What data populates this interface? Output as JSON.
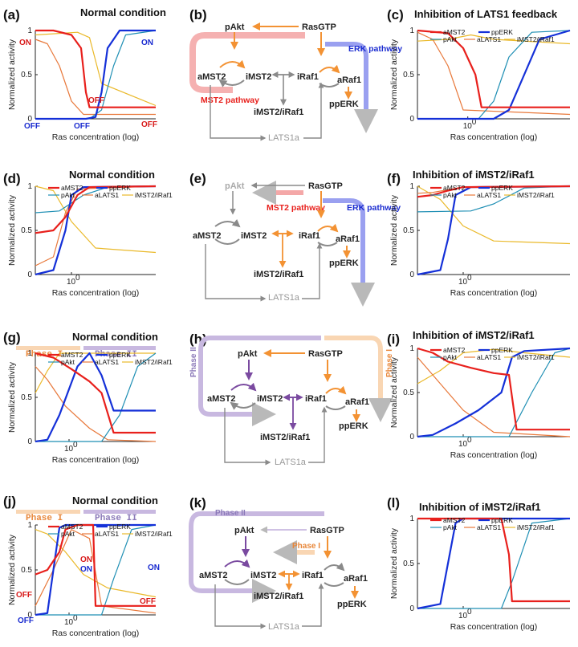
{
  "colors": {
    "aMST2": "#e8201c",
    "ppERK": "#1430d8",
    "pAkt": "#1f8fb4",
    "aLATS1": "#e8783a",
    "iMST2_iRaf1": "#eab92a",
    "orange_arrow": "#f39233",
    "gray_arrow": "#8a8a8a",
    "purple_arrow": "#7a4aa0",
    "mst2_band": "#f4a8a8",
    "erk_band": "#9aa0f0",
    "phase1_band": "#f9d6b3",
    "phase2_band": "#c8b8e0",
    "phase1_text": "#e8873a",
    "phase2_text": "#8a78b8",
    "on_red": "#d81b1b",
    "on_blue": "#1a2bd0",
    "latsa_text": "#999999"
  },
  "common": {
    "xlabel": "Ras concentration (log)",
    "ylabel": "Normalized activity",
    "xtick": "10",
    "xtick_exp": "0"
  },
  "panels": [
    {
      "label": "(a)",
      "title": "Normal condition"
    },
    {
      "label": "(b)"
    },
    {
      "label": "(c)",
      "title": "Inhibition of LATS1 feedback"
    },
    {
      "label": "(d)",
      "title": "Normal condition"
    },
    {
      "label": "(e)"
    },
    {
      "label": "(f)",
      "title": "Inhibition of iMST2/iRaf1"
    },
    {
      "label": "(g)",
      "title": "Normal condition"
    },
    {
      "label": "(h)"
    },
    {
      "label": "(i)",
      "title": "Inhibition of iMST2/iRaf1"
    },
    {
      "label": "(j)",
      "title": "Normal condition"
    },
    {
      "label": "(k)"
    },
    {
      "label": "(l)",
      "title": "Inhibition of iMST2/iRaf1"
    }
  ],
  "legend": {
    "aMST2": "aMST2",
    "ppERK": "ppERK",
    "pAkt": "pAkt",
    "aLATS1": "aLATS1",
    "iMST2_iRaf1": "iMST2/iRaf1"
  },
  "nodes": {
    "pAkt": "pAkt",
    "RasGTP": "RasGTP",
    "aMST2": "aMST2",
    "iMST2": "iMST2",
    "iRaf1": "iRaf1",
    "aRaf1": "aRaf1",
    "ppERK": "ppERK",
    "complex": "iMST2/iRaf1",
    "LATS1a": "LATS1a"
  },
  "pathways": {
    "mst2": "MST2 pathway",
    "erk": "ERK pathway",
    "phase1": "Phase I",
    "phase2": "Phase II"
  },
  "phase_bar": {
    "phase1": "Phase I",
    "phase2": "Phase II"
  },
  "annotations": {
    "on": "ON",
    "off": "OFF"
  },
  "chart_data": [
    {
      "type": "line",
      "panel": "a",
      "title": "Normal condition",
      "xlabel": "Ras concentration (log)",
      "ylabel": "Normalized activity",
      "xscale": "log",
      "ylim": [
        0,
        1
      ],
      "series": [
        {
          "name": "aMST2",
          "x": [
            0,
            0.15,
            0.3,
            0.38,
            0.42,
            0.45,
            1
          ],
          "y": [
            1,
            1,
            0.95,
            0.8,
            0.3,
            0.13,
            0.13
          ]
        },
        {
          "name": "ppERK",
          "x": [
            0,
            0.42,
            0.5,
            0.55,
            0.6,
            0.7,
            1
          ],
          "y": [
            0,
            0,
            0.02,
            0.3,
            0.8,
            1,
            1
          ]
        },
        {
          "name": "pAkt",
          "x": [
            0,
            0.45,
            0.55,
            0.65,
            0.75,
            1
          ],
          "y": [
            0,
            0,
            0.1,
            0.6,
            0.95,
            1
          ]
        },
        {
          "name": "aLATS1",
          "x": [
            0,
            0.1,
            0.2,
            0.3,
            0.4,
            1
          ],
          "y": [
            0.9,
            0.85,
            0.6,
            0.2,
            0.05,
            0.05
          ]
        },
        {
          "name": "iMST2/iRaf1",
          "x": [
            0,
            0.35,
            0.45,
            0.55,
            1
          ],
          "y": [
            0.95,
            0.98,
            0.92,
            0.4,
            0.15
          ]
        }
      ]
    },
    {
      "type": "line",
      "panel": "c",
      "title": "Inhibition of LATS1 feedback",
      "xlabel": "Ras concentration (log)",
      "ylabel": "Normalized activity",
      "xscale": "log",
      "ylim": [
        0,
        1
      ],
      "series": [
        {
          "name": "aMST2",
          "x": [
            0,
            0.2,
            0.3,
            0.38,
            0.42,
            1
          ],
          "y": [
            1,
            0.97,
            0.8,
            0.5,
            0.13,
            0.13
          ]
        },
        {
          "name": "ppERK",
          "x": [
            0,
            0.5,
            0.6,
            0.7,
            0.8,
            1
          ],
          "y": [
            0,
            0,
            0.1,
            0.5,
            0.9,
            1
          ]
        },
        {
          "name": "pAkt",
          "x": [
            0,
            0.4,
            0.5,
            0.6,
            0.75,
            1
          ],
          "y": [
            0,
            0,
            0.2,
            0.7,
            0.98,
            1
          ]
        },
        {
          "name": "aLATS1",
          "x": [
            0,
            0.1,
            0.2,
            0.3,
            1
          ],
          "y": [
            0.98,
            0.9,
            0.6,
            0.1,
            0.05
          ]
        },
        {
          "name": "iMST2/iRaf1",
          "x": [
            0,
            0.2,
            0.35,
            0.5,
            1
          ],
          "y": [
            0.88,
            0.9,
            0.95,
            0.9,
            0.85
          ]
        }
      ]
    },
    {
      "type": "line",
      "panel": "d",
      "title": "Normal condition",
      "xlabel": "Ras concentration (log)",
      "ylabel": "Normalized activity",
      "xscale": "log",
      "ylim": [
        0,
        1
      ],
      "series": [
        {
          "name": "aMST2",
          "x": [
            0,
            0.15,
            0.25,
            0.35,
            0.45,
            1
          ],
          "y": [
            0.47,
            0.5,
            0.65,
            0.9,
            0.99,
            1
          ]
        },
        {
          "name": "ppERK",
          "x": [
            0,
            0.15,
            0.25,
            0.3,
            0.4,
            1
          ],
          "y": [
            0,
            0.05,
            0.5,
            0.9,
            0.99,
            1
          ]
        },
        {
          "name": "pAkt",
          "x": [
            0,
            0.2,
            0.4,
            0.6,
            1
          ],
          "y": [
            0.7,
            0.72,
            0.9,
            0.99,
            1
          ]
        },
        {
          "name": "aLATS1",
          "x": [
            0,
            0.15,
            0.25,
            0.35,
            1
          ],
          "y": [
            0.1,
            0.2,
            0.7,
            0.97,
            1
          ]
        },
        {
          "name": "iMST2/iRaf1",
          "x": [
            0,
            0.15,
            0.3,
            0.5,
            1
          ],
          "y": [
            1,
            0.95,
            0.6,
            0.3,
            0.25
          ]
        }
      ]
    },
    {
      "type": "line",
      "panel": "f",
      "title": "Inhibition of iMST2/iRaf1",
      "xlabel": "Ras concentration (log)",
      "ylabel": "Normalized activity",
      "xscale": "log",
      "ylim": [
        0,
        1
      ],
      "series": [
        {
          "name": "aMST2",
          "x": [
            0,
            0.1,
            0.2,
            0.3,
            1
          ],
          "y": [
            0.88,
            0.9,
            0.95,
            0.99,
            1
          ]
        },
        {
          "name": "ppERK",
          "x": [
            0,
            0.15,
            0.2,
            0.25,
            0.35,
            1
          ],
          "y": [
            0,
            0.05,
            0.4,
            0.9,
            0.99,
            1
          ]
        },
        {
          "name": "pAkt",
          "x": [
            0,
            0.35,
            0.5,
            0.7,
            1
          ],
          "y": [
            0.71,
            0.72,
            0.8,
            0.98,
            1
          ]
        },
        {
          "name": "aLATS1",
          "x": [
            0,
            0.1,
            0.2,
            0.3,
            1
          ],
          "y": [
            0.92,
            0.93,
            0.96,
            0.99,
            1
          ]
        },
        {
          "name": "iMST2/iRaf1",
          "x": [
            0,
            0.15,
            0.3,
            0.5,
            1
          ],
          "y": [
            1,
            0.85,
            0.55,
            0.38,
            0.35
          ]
        }
      ]
    },
    {
      "type": "line",
      "panel": "g",
      "title": "Normal condition",
      "xlabel": "Ras concentration (log)",
      "ylabel": "Normalized activity",
      "xscale": "log",
      "ylim": [
        0,
        1
      ],
      "series": [
        {
          "name": "aMST2",
          "x": [
            0,
            0.15,
            0.3,
            0.45,
            0.55,
            0.65,
            1
          ],
          "y": [
            1,
            0.95,
            0.82,
            0.68,
            0.55,
            0.1,
            0.1
          ]
        },
        {
          "name": "ppERK",
          "x": [
            0,
            0.1,
            0.2,
            0.35,
            0.45,
            0.55,
            0.65,
            1
          ],
          "y": [
            0,
            0.02,
            0.3,
            0.85,
            1,
            0.75,
            0.35,
            0.35
          ]
        },
        {
          "name": "pAkt",
          "x": [
            0,
            0.55,
            0.7,
            0.85,
            1
          ],
          "y": [
            0,
            0,
            0.3,
            0.85,
            1
          ]
        },
        {
          "name": "aLATS1",
          "x": [
            0,
            0.1,
            0.25,
            0.45,
            0.6,
            1
          ],
          "y": [
            0.85,
            0.7,
            0.4,
            0.15,
            0.02,
            0
          ]
        },
        {
          "name": "iMST2/iRaf1",
          "x": [
            0,
            0.1,
            0.2,
            0.3,
            0.5,
            1
          ],
          "y": [
            0.55,
            0.8,
            1,
            1,
            1,
            1
          ]
        }
      ]
    },
    {
      "type": "line",
      "panel": "i",
      "title": "Inhibition of iMST2/iRaf1",
      "xlabel": "Ras concentration (log)",
      "ylabel": "Normalized activity",
      "xscale": "log",
      "ylim": [
        0,
        1
      ],
      "series": [
        {
          "name": "aMST2",
          "x": [
            0,
            0.1,
            0.2,
            0.35,
            0.5,
            0.6,
            0.65,
            1
          ],
          "y": [
            1,
            0.95,
            0.85,
            0.78,
            0.72,
            0.7,
            0.08,
            0.08
          ]
        },
        {
          "name": "ppERK",
          "x": [
            0,
            0.1,
            0.25,
            0.4,
            0.55,
            0.62,
            0.7,
            1
          ],
          "y": [
            0,
            0.02,
            0.15,
            0.3,
            0.5,
            0.9,
            0.97,
            1
          ]
        },
        {
          "name": "pAkt",
          "x": [
            0,
            0.6,
            0.75,
            0.9,
            1
          ],
          "y": [
            0,
            0,
            0.5,
            0.95,
            1
          ]
        },
        {
          "name": "aLATS1",
          "x": [
            0,
            0.1,
            0.3,
            0.5,
            1
          ],
          "y": [
            0.9,
            0.7,
            0.3,
            0.05,
            0
          ]
        },
        {
          "name": "iMST2/iRaf1",
          "x": [
            0,
            0.15,
            0.3,
            0.5,
            0.7,
            1
          ],
          "y": [
            0.6,
            0.75,
            0.95,
            0.99,
            0.95,
            0.9
          ]
        }
      ]
    },
    {
      "type": "line",
      "panel": "j",
      "title": "Normal condition",
      "xlabel": "Ras concentration (log)",
      "ylabel": "Normalized activity",
      "xscale": "log",
      "ylim": [
        0,
        1
      ],
      "series": [
        {
          "name": "aMST2",
          "x": [
            0,
            0.1,
            0.2,
            0.25,
            0.35,
            0.48,
            0.5,
            1
          ],
          "y": [
            0.45,
            0.5,
            0.7,
            0.95,
            1,
            1,
            0.1,
            0.1
          ]
        },
        {
          "name": "ppERK",
          "x": [
            0,
            0.1,
            0.15,
            0.2,
            0.25,
            1
          ],
          "y": [
            0,
            0.02,
            0.5,
            0.97,
            1,
            1
          ]
        },
        {
          "name": "pAkt",
          "x": [
            0,
            0.55,
            0.65,
            0.8,
            1
          ],
          "y": [
            0,
            0,
            0.4,
            0.95,
            1
          ]
        },
        {
          "name": "aLATS1",
          "x": [
            0,
            0.15,
            0.3,
            0.45,
            0.55,
            1
          ],
          "y": [
            0.1,
            0.5,
            0.95,
            0.85,
            0.1,
            0.02
          ]
        },
        {
          "name": "iMST2/iRaf1",
          "x": [
            0,
            0.1,
            0.25,
            0.4,
            0.6,
            1
          ],
          "y": [
            0.95,
            0.9,
            0.7,
            0.45,
            0.3,
            0.2
          ]
        }
      ]
    },
    {
      "type": "line",
      "panel": "l",
      "title": "Inhibition of iMST2/iRaf1",
      "xlabel": "Ras concentration (log)",
      "ylabel": "Normalized activity",
      "xscale": "log",
      "ylim": [
        0,
        1
      ],
      "series": [
        {
          "name": "aMST2",
          "x": [
            0,
            0.55,
            0.6,
            0.62,
            1
          ],
          "y": [
            1,
            1,
            0.6,
            0.08,
            0.08
          ]
        },
        {
          "name": "ppERK",
          "x": [
            0,
            0.15,
            0.2,
            0.25,
            0.3,
            1
          ],
          "y": [
            0,
            0.05,
            0.5,
            0.95,
            1,
            1
          ]
        },
        {
          "name": "pAkt",
          "x": [
            0,
            0.55,
            0.62,
            0.75,
            1
          ],
          "y": [
            0,
            0,
            0.3,
            0.95,
            1
          ]
        },
        {
          "name": "aLATS1",
          "x": [
            0,
            0.5,
            0.6,
            1
          ],
          "y": [
            1,
            1,
            1,
            1
          ]
        },
        {
          "name": "iMST2/iRaf1",
          "x": [
            0,
            0.5,
            1
          ],
          "y": [
            1,
            1,
            1
          ]
        }
      ]
    }
  ]
}
